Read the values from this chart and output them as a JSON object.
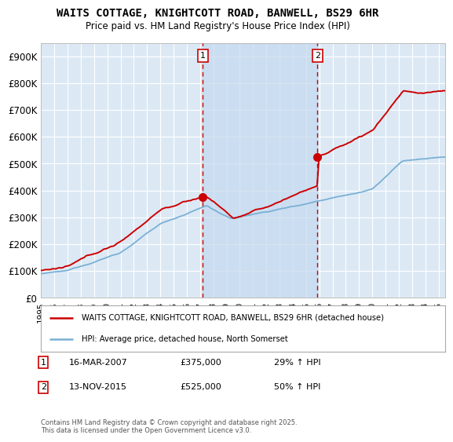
{
  "title": "WAITS COTTAGE, KNIGHTCOTT ROAD, BANWELL, BS29 6HR",
  "subtitle": "Price paid vs. HM Land Registry's House Price Index (HPI)",
  "ylabel_ticks": [
    "£0",
    "£100K",
    "£200K",
    "£300K",
    "£400K",
    "£500K",
    "£600K",
    "£700K",
    "£800K",
    "£900K"
  ],
  "ytick_values": [
    0,
    100000,
    200000,
    300000,
    400000,
    500000,
    600000,
    700000,
    800000,
    900000
  ],
  "ylim": [
    0,
    950000
  ],
  "xlim_start": 1995.0,
  "xlim_end": 2025.5,
  "transaction1_x": 2007.21,
  "transaction1_y": 375000,
  "transaction2_x": 2015.87,
  "transaction2_y": 525000,
  "transaction1_date": "16-MAR-2007",
  "transaction1_price": "£375,000",
  "transaction1_hpi": "29% ↑ HPI",
  "transaction2_date": "13-NOV-2015",
  "transaction2_price": "£525,000",
  "transaction2_hpi": "50% ↑ HPI",
  "line_color_red": "#cc0000",
  "line_color_blue": "#7ab0d4",
  "plot_bg_color": "#dce9f5",
  "band_color": "#c5d9ee",
  "outer_bg_color": "#ffffff",
  "grid_color": "#ffffff",
  "vline_color": "#cc0000",
  "legend_label_red": "WAITS COTTAGE, KNIGHTCOTT ROAD, BANWELL, BS29 6HR (detached house)",
  "legend_label_blue": "HPI: Average price, detached house, North Somerset",
  "footnote": "Contains HM Land Registry data © Crown copyright and database right 2025.\nThis data is licensed under the Open Government Licence v3.0.",
  "xtick_years": [
    1995,
    1996,
    1997,
    1998,
    1999,
    2000,
    2001,
    2002,
    2003,
    2004,
    2005,
    2006,
    2007,
    2008,
    2009,
    2010,
    2011,
    2012,
    2013,
    2014,
    2015,
    2016,
    2017,
    2018,
    2019,
    2020,
    2021,
    2022,
    2023,
    2024,
    2025
  ]
}
